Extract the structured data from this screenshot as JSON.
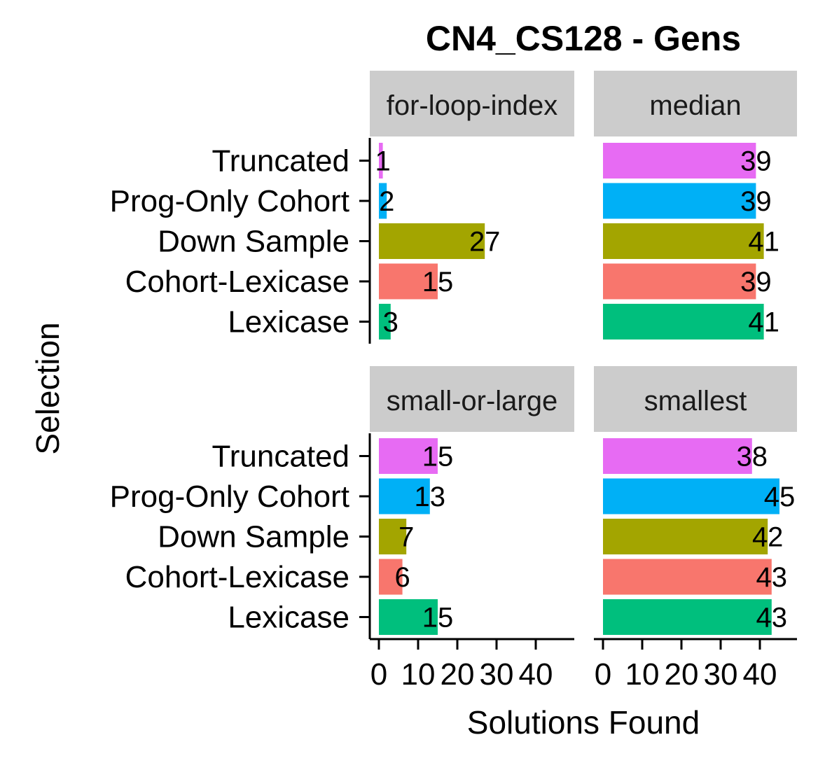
{
  "chart_data": {
    "type": "bar",
    "orientation": "horizontal",
    "title": "CN4_CS128 - Gens",
    "xlabel": "Solutions Found",
    "ylabel": "Selection",
    "categories": [
      "Truncated",
      "Prog-Only Cohort",
      "Down Sample",
      "Cohort-Lexicase",
      "Lexicase"
    ],
    "category_colors": {
      "Truncated": "#E76BF3",
      "Prog-Only Cohort": "#00B0F6",
      "Down Sample": "#A3A500",
      "Cohort-Lexicase": "#F8766D",
      "Lexicase": "#00BF7D"
    },
    "x_ticks": [
      0,
      10,
      20,
      30,
      40
    ],
    "x_tick_labels": [
      "0",
      "10",
      "20",
      "30",
      "40"
    ],
    "xlim": [
      0,
      49
    ],
    "strip_background": "#CCCCCC",
    "panels": [
      {
        "name": "for-loop-index",
        "values": [
          1,
          2,
          27,
          15,
          3
        ]
      },
      {
        "name": "median",
        "values": [
          39,
          39,
          41,
          39,
          41
        ]
      },
      {
        "name": "small-or-large",
        "values": [
          15,
          13,
          7,
          6,
          15
        ]
      },
      {
        "name": "smallest",
        "values": [
          38,
          45,
          42,
          43,
          43
        ]
      }
    ]
  }
}
